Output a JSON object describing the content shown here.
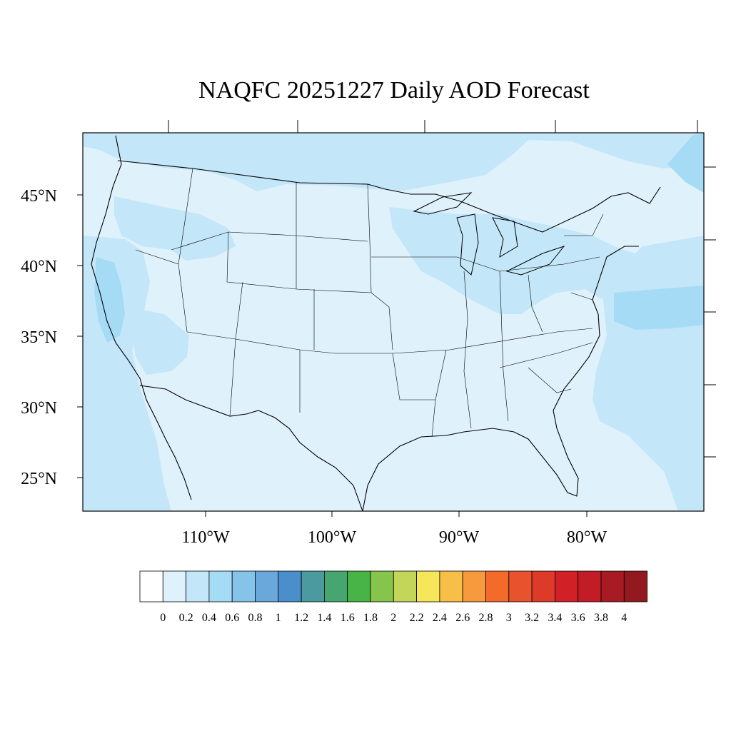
{
  "title": "NAQFC 20251227 Daily AOD Forecast",
  "map": {
    "lat_labels": [
      "45°N",
      "40°N",
      "35°N",
      "30°N",
      "25°N"
    ],
    "lon_labels": [
      "110°W",
      "100°W",
      "90°W",
      "80°W"
    ],
    "colors": {
      "background": "#dff1fb",
      "level_0_4": "#c3e6f8",
      "level_0_6": "#a6dbf5",
      "land_outline": "#000000"
    }
  },
  "colorbar": {
    "labels": [
      "0",
      "0.2",
      "0.4",
      "0.6",
      "0.8",
      "1",
      "1.2",
      "1.4",
      "1.6",
      "1.8",
      "2",
      "2.2",
      "2.4",
      "2.6",
      "2.8",
      "3",
      "3.2",
      "3.4",
      "3.6",
      "3.8",
      "4"
    ],
    "colors": [
      "#ffffff",
      "#dff1fb",
      "#c3e6f8",
      "#a6dbf5",
      "#86c3e9",
      "#6aa8dc",
      "#4a8ecb",
      "#4a9a9f",
      "#47a56f",
      "#48b447",
      "#86c44b",
      "#c4d65a",
      "#f6e65a",
      "#f7be48",
      "#f79a3d",
      "#f36b2b",
      "#e8522c",
      "#dd3a29",
      "#d22027",
      "#c21d27",
      "#a81b23",
      "#921a1e"
    ]
  }
}
